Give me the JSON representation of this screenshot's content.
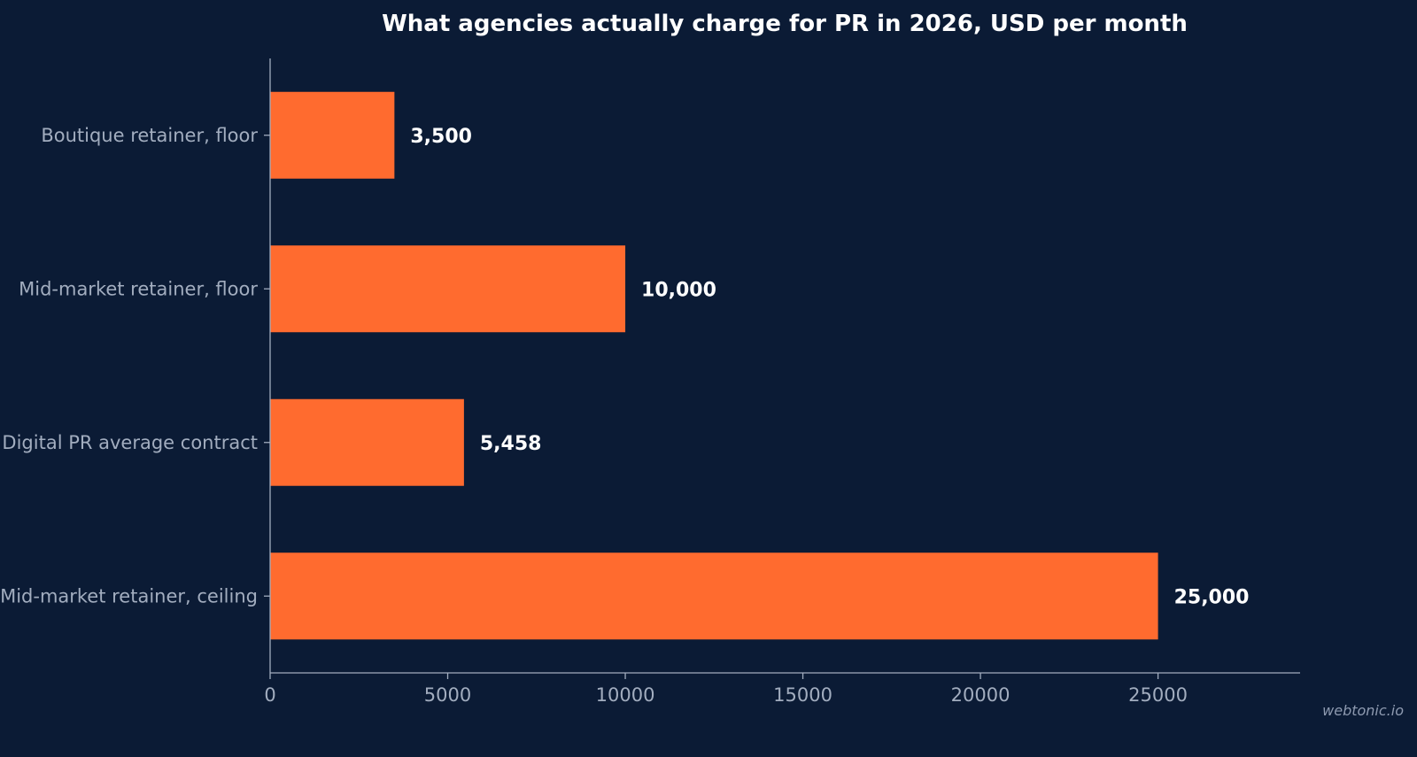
{
  "chart_data": {
    "type": "bar",
    "orientation": "horizontal",
    "title": "What agencies actually charge for PR in 2026, USD per month",
    "categories": [
      "Boutique retainer, floor",
      "Mid-market retainer, floor",
      "Digital PR average contract",
      "Mid-market retainer, ceiling"
    ],
    "values": [
      3500,
      10000,
      5458,
      25000
    ],
    "value_labels": [
      "3,500",
      "10,000",
      "5,458",
      "25,000"
    ],
    "xlabel": "",
    "ylabel": "",
    "xlim": [
      0,
      29000
    ],
    "x_ticks": [
      0,
      5000,
      10000,
      15000,
      20000,
      25000
    ],
    "x_tick_labels": [
      "0",
      "5000",
      "10000",
      "15000",
      "20000",
      "25000"
    ],
    "grid": false,
    "legend": "none",
    "bar_color": "#ff6b2f",
    "background_color": "#0b1b35"
  },
  "watermark": "webtonic.io"
}
